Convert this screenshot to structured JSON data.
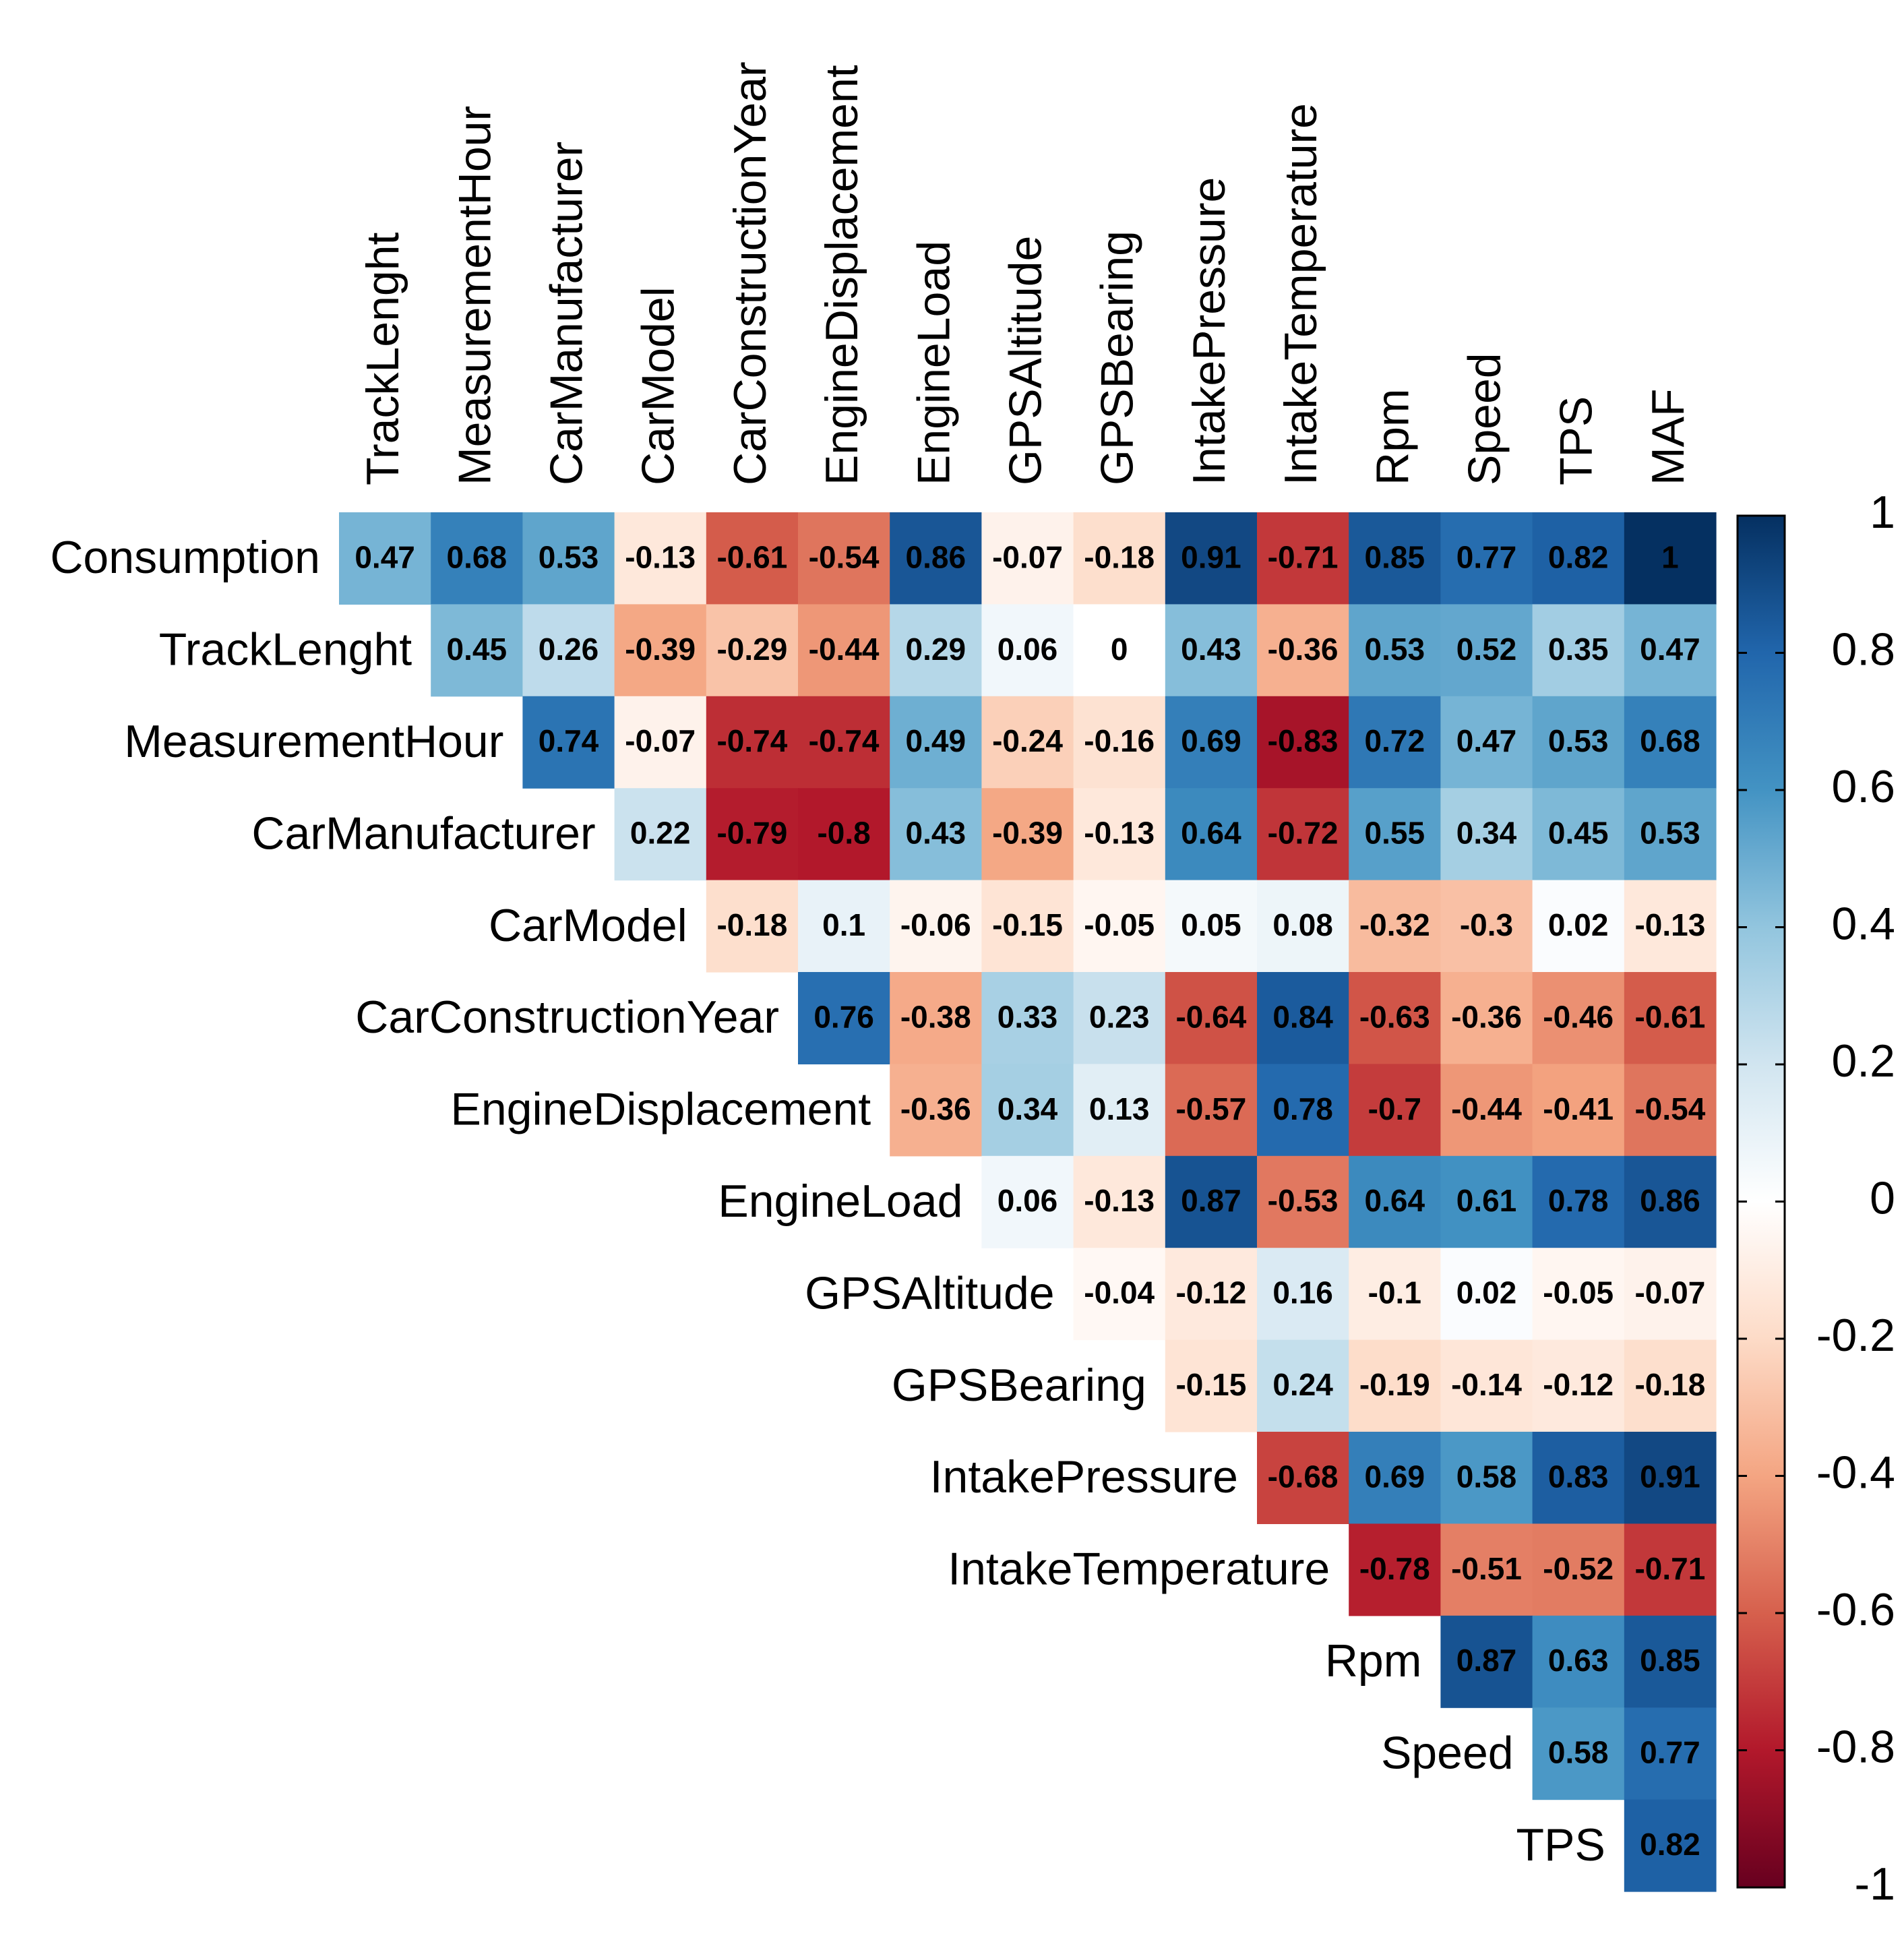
{
  "chart_data": {
    "type": "heatmap",
    "title": "",
    "xlabel": "",
    "ylabel": "",
    "rows": [
      "Consumption",
      "TrackLenght",
      "MeasurementHour",
      "CarManufacturer",
      "CarModel",
      "CarConstructionYear",
      "EngineDisplacement",
      "EngineLoad",
      "GPSAltitude",
      "GPSBearing",
      "IntakePressure",
      "IntakeTemperature",
      "Rpm",
      "Speed",
      "TPS"
    ],
    "columns": [
      "TrackLenght",
      "MeasurementHour",
      "CarManufacturer",
      "CarModel",
      "CarConstructionYear",
      "EngineDisplacement",
      "EngineLoad",
      "GPSAltitude",
      "GPSBearing",
      "IntakePressure",
      "IntakeTemperature",
      "Rpm",
      "Speed",
      "TPS",
      "MAF"
    ],
    "values": [
      [
        0.47,
        0.68,
        0.53,
        -0.13,
        -0.61,
        -0.54,
        0.86,
        -0.07,
        -0.18,
        0.91,
        -0.71,
        0.85,
        0.77,
        0.82,
        1
      ],
      [
        0.45,
        0.26,
        -0.39,
        -0.29,
        -0.44,
        0.29,
        0.06,
        0,
        0.43,
        -0.36,
        0.53,
        0.52,
        0.35,
        0.47
      ],
      [
        0.74,
        -0.07,
        -0.74,
        -0.74,
        0.49,
        -0.24,
        -0.16,
        0.69,
        -0.83,
        0.72,
        0.47,
        0.53,
        0.68
      ],
      [
        0.22,
        -0.79,
        -0.8,
        0.43,
        -0.39,
        -0.13,
        0.64,
        -0.72,
        0.55,
        0.34,
        0.45,
        0.53
      ],
      [
        -0.18,
        0.1,
        -0.06,
        -0.15,
        -0.05,
        0.05,
        0.08,
        -0.32,
        -0.3,
        0.02,
        -0.13
      ],
      [
        0.76,
        -0.38,
        0.33,
        0.23,
        -0.64,
        0.84,
        -0.63,
        -0.36,
        -0.46,
        -0.61
      ],
      [
        -0.36,
        0.34,
        0.13,
        -0.57,
        0.78,
        -0.7,
        -0.44,
        -0.41,
        -0.54
      ],
      [
        0.06,
        -0.13,
        0.87,
        -0.53,
        0.64,
        0.61,
        0.78,
        0.86
      ],
      [
        -0.04,
        -0.12,
        0.16,
        -0.1,
        0.02,
        -0.05,
        -0.07
      ],
      [
        -0.15,
        0.24,
        -0.19,
        -0.14,
        -0.12,
        -0.18
      ],
      [
        -0.68,
        0.69,
        0.58,
        0.83,
        0.91
      ],
      [
        -0.78,
        -0.51,
        -0.52,
        -0.71
      ],
      [
        0.87,
        0.63,
        0.85
      ],
      [
        0.58,
        0.77
      ],
      [
        0.82
      ]
    ],
    "layout_note": "upper-triangular: row i starts at column i",
    "colorbar": {
      "range": [
        -1,
        1
      ],
      "ticks": [
        "1",
        "0.8",
        "0.6",
        "0.4",
        "0.2",
        "0",
        "-0.2",
        "-0.4",
        "-0.6",
        "-0.8",
        "-1"
      ],
      "tick_values": [
        1,
        0.8,
        0.6,
        0.4,
        0.2,
        0,
        -0.2,
        -0.4,
        -0.6,
        -0.8,
        -1
      ],
      "colors": [
        "#67001f",
        "#b2182b",
        "#d6604d",
        "#f4a582",
        "#fddbc7",
        "#ffffff",
        "#d1e5f0",
        "#92c5de",
        "#4393c3",
        "#2166ac",
        "#053061"
      ]
    },
    "legend": "right",
    "grid": false
  }
}
